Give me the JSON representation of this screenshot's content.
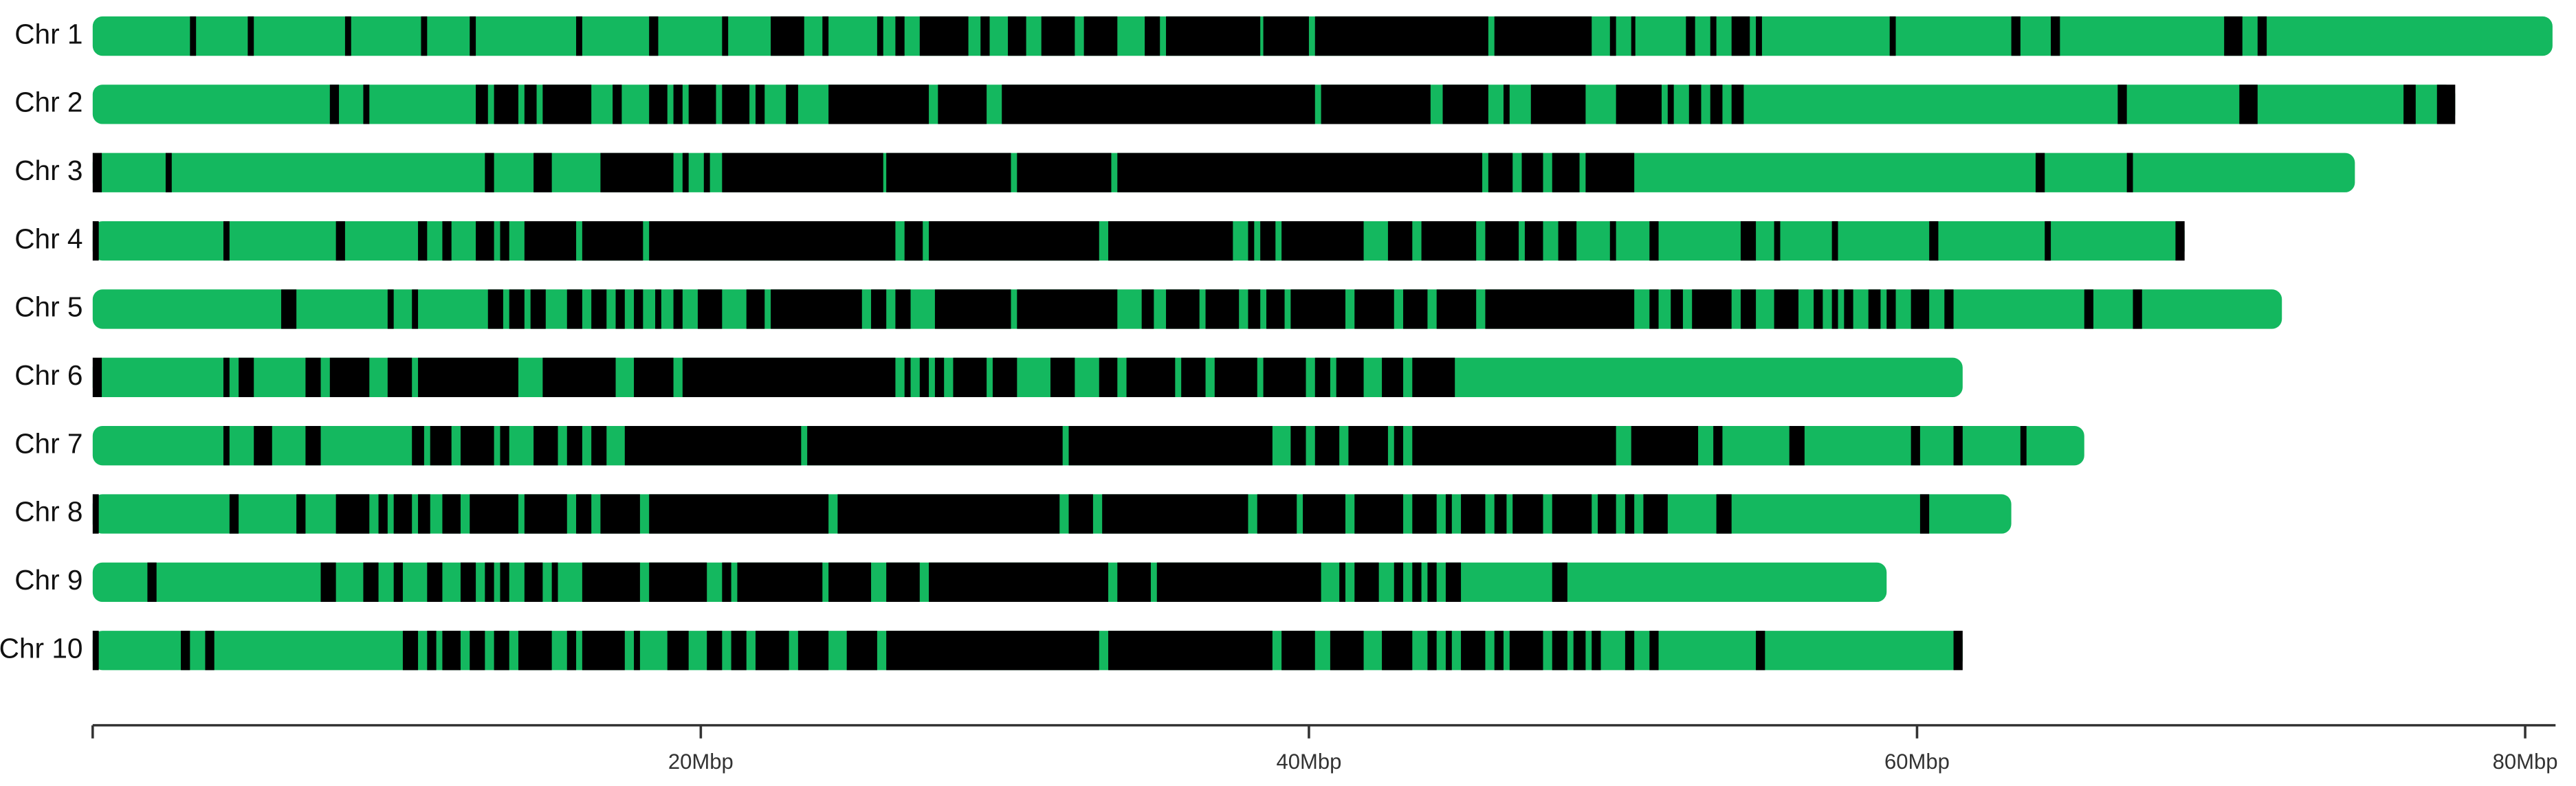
{
  "chart_data": {
    "type": "ideogram",
    "categories": [
      "Chr 1",
      "Chr 2",
      "Chr 3",
      "Chr 4",
      "Chr 5",
      "Chr 6",
      "Chr 7",
      "Chr 8",
      "Chr 9",
      "Chr 10"
    ],
    "lengths": [
      80.9,
      77.7,
      74.4,
      68.8,
      72.0,
      61.5,
      65.5,
      63.1,
      59.0,
      61.5
    ],
    "chromosome_color": "#14b85f",
    "segment_color": "#000000",
    "segments": [
      [
        [
          3.2,
          3.4
        ],
        [
          5.1,
          5.3
        ],
        [
          8.3,
          8.5
        ],
        [
          10.8,
          11.0
        ],
        [
          12.4,
          12.6
        ],
        [
          15.9,
          16.1
        ],
        [
          18.3,
          18.6
        ],
        [
          20.7,
          20.9
        ],
        [
          22.3,
          23.4
        ],
        [
          24.0,
          24.2
        ],
        [
          25.8,
          26.0
        ],
        [
          26.4,
          26.7
        ],
        [
          27.2,
          28.8
        ],
        [
          29.2,
          29.5
        ],
        [
          30.1,
          30.7
        ],
        [
          31.2,
          32.3
        ],
        [
          32.6,
          33.7
        ],
        [
          34.6,
          35.1
        ],
        [
          35.3,
          38.4
        ],
        [
          38.5,
          40.0
        ],
        [
          40.2,
          45.9
        ],
        [
          46.1,
          49.3
        ],
        [
          49.9,
          50.1
        ],
        [
          50.6,
          50.7
        ],
        [
          52.4,
          52.7
        ],
        [
          53.2,
          53.4
        ],
        [
          53.9,
          54.5
        ],
        [
          54.7,
          54.9
        ],
        [
          59.1,
          59.3
        ],
        [
          63.1,
          63.4
        ],
        [
          64.4,
          64.7
        ],
        [
          70.1,
          70.7
        ],
        [
          71.2,
          71.5
        ]
      ],
      [
        [
          7.8,
          8.1
        ],
        [
          8.9,
          9.1
        ],
        [
          12.6,
          13.0
        ],
        [
          13.2,
          14.0
        ],
        [
          14.2,
          14.6
        ],
        [
          14.8,
          16.4
        ],
        [
          17.1,
          17.4
        ],
        [
          18.3,
          18.9
        ],
        [
          19.1,
          19.4
        ],
        [
          19.6,
          20.5
        ],
        [
          20.7,
          21.6
        ],
        [
          21.8,
          22.1
        ],
        [
          22.8,
          23.2
        ],
        [
          24.2,
          27.5
        ],
        [
          27.8,
          29.4
        ],
        [
          29.9,
          40.2
        ],
        [
          40.4,
          44.0
        ],
        [
          44.4,
          45.9
        ],
        [
          46.4,
          46.6
        ],
        [
          47.3,
          49.1
        ],
        [
          50.1,
          51.6
        ],
        [
          51.8,
          52.0
        ],
        [
          52.5,
          52.9
        ],
        [
          53.2,
          53.6
        ],
        [
          53.9,
          54.3
        ],
        [
          66.6,
          66.9
        ],
        [
          70.6,
          71.2
        ],
        [
          76.0,
          76.4
        ],
        [
          77.1,
          77.7
        ]
      ],
      [
        [
          0,
          0.3
        ],
        [
          2.4,
          2.6
        ],
        [
          12.9,
          13.2
        ],
        [
          14.5,
          15.1
        ],
        [
          16.7,
          19.1
        ],
        [
          19.4,
          19.6
        ],
        [
          20.1,
          20.3
        ],
        [
          20.7,
          26.0
        ],
        [
          26.1,
          30.2
        ],
        [
          30.4,
          33.5
        ],
        [
          33.7,
          45.7
        ],
        [
          45.9,
          46.7
        ],
        [
          47.0,
          47.7
        ],
        [
          48.0,
          48.9
        ],
        [
          49.1,
          50.7
        ],
        [
          63.9,
          64.2
        ],
        [
          66.9,
          67.1
        ]
      ],
      [
        [
          0,
          0.2
        ],
        [
          4.3,
          4.5
        ],
        [
          8.0,
          8.3
        ],
        [
          10.7,
          11.0
        ],
        [
          11.5,
          11.8
        ],
        [
          12.6,
          13.2
        ],
        [
          13.4,
          13.7
        ],
        [
          14.2,
          15.9
        ],
        [
          16.1,
          18.1
        ],
        [
          18.3,
          26.4
        ],
        [
          26.7,
          27.3
        ],
        [
          27.5,
          33.1
        ],
        [
          33.4,
          37.5
        ],
        [
          38.0,
          38.2
        ],
        [
          38.4,
          38.9
        ],
        [
          39.1,
          41.8
        ],
        [
          42.6,
          43.4
        ],
        [
          43.7,
          45.5
        ],
        [
          45.8,
          46.9
        ],
        [
          47.1,
          47.7
        ],
        [
          48.2,
          48.8
        ],
        [
          49.9,
          50.1
        ],
        [
          51.2,
          51.5
        ],
        [
          54.2,
          54.7
        ],
        [
          55.3,
          55.5
        ],
        [
          57.2,
          57.4
        ],
        [
          60.4,
          60.7
        ],
        [
          64.2,
          64.4
        ],
        [
          68.5,
          68.8
        ]
      ],
      [
        [
          6.2,
          6.7
        ],
        [
          9.7,
          9.9
        ],
        [
          10.5,
          10.7
        ],
        [
          13.0,
          13.5
        ],
        [
          13.7,
          14.2
        ],
        [
          14.4,
          14.9
        ],
        [
          15.6,
          16.1
        ],
        [
          16.4,
          16.9
        ],
        [
          17.2,
          17.5
        ],
        [
          17.8,
          18.1
        ],
        [
          18.5,
          18.7
        ],
        [
          19.1,
          19.4
        ],
        [
          19.9,
          20.7
        ],
        [
          21.5,
          22.1
        ],
        [
          22.3,
          25.3
        ],
        [
          25.6,
          26.1
        ],
        [
          26.4,
          26.9
        ],
        [
          27.7,
          30.2
        ],
        [
          30.4,
          33.7
        ],
        [
          34.5,
          34.9
        ],
        [
          35.3,
          36.4
        ],
        [
          36.6,
          37.7
        ],
        [
          38.0,
          38.4
        ],
        [
          38.6,
          39.2
        ],
        [
          39.4,
          41.2
        ],
        [
          41.5,
          42.8
        ],
        [
          43.1,
          43.9
        ],
        [
          44.2,
          45.5
        ],
        [
          45.8,
          50.7
        ],
        [
          51.2,
          51.5
        ],
        [
          51.9,
          52.3
        ],
        [
          52.6,
          53.9
        ],
        [
          54.2,
          54.7
        ],
        [
          55.3,
          56.1
        ],
        [
          56.6,
          56.9
        ],
        [
          57.2,
          57.4
        ],
        [
          57.6,
          57.9
        ],
        [
          58.4,
          58.8
        ],
        [
          59.0,
          59.3
        ],
        [
          59.8,
          60.4
        ],
        [
          60.9,
          61.2
        ],
        [
          65.5,
          65.8
        ],
        [
          67.1,
          67.4
        ]
      ],
      [
        [
          0,
          0.3
        ],
        [
          4.3,
          4.5
        ],
        [
          4.8,
          5.3
        ],
        [
          7.0,
          7.5
        ],
        [
          7.8,
          9.1
        ],
        [
          9.7,
          10.5
        ],
        [
          10.7,
          14.0
        ],
        [
          14.8,
          17.2
        ],
        [
          17.8,
          19.1
        ],
        [
          19.4,
          26.4
        ],
        [
          26.7,
          26.9
        ],
        [
          27.2,
          27.5
        ],
        [
          27.7,
          28.0
        ],
        [
          28.3,
          29.4
        ],
        [
          29.6,
          30.4
        ],
        [
          31.5,
          32.3
        ],
        [
          33.1,
          33.7
        ],
        [
          34.0,
          35.6
        ],
        [
          35.8,
          36.6
        ],
        [
          36.9,
          38.3
        ],
        [
          38.5,
          39.9
        ],
        [
          40.2,
          40.7
        ],
        [
          40.9,
          41.8
        ],
        [
          42.4,
          43.1
        ],
        [
          43.4,
          44.8
        ]
      ],
      [
        [
          4.3,
          4.5
        ],
        [
          5.3,
          5.9
        ],
        [
          7.0,
          7.5
        ],
        [
          10.5,
          10.9
        ],
        [
          11.1,
          11.8
        ],
        [
          12.1,
          13.2
        ],
        [
          13.4,
          13.7
        ],
        [
          14.5,
          15.3
        ],
        [
          15.6,
          16.1
        ],
        [
          16.4,
          16.9
        ],
        [
          17.5,
          23.3
        ],
        [
          23.5,
          31.9
        ],
        [
          32.1,
          38.8
        ],
        [
          39.4,
          39.9
        ],
        [
          40.2,
          41.0
        ],
        [
          41.3,
          42.6
        ],
        [
          42.8,
          43.1
        ],
        [
          43.4,
          50.1
        ],
        [
          50.6,
          52.8
        ],
        [
          53.3,
          53.6
        ],
        [
          55.8,
          56.3
        ],
        [
          59.8,
          60.1
        ],
        [
          61.2,
          61.5
        ],
        [
          63.4,
          63.6
        ]
      ],
      [
        [
          0,
          0.2
        ],
        [
          4.5,
          4.8
        ],
        [
          6.7,
          7.0
        ],
        [
          8.0,
          9.1
        ],
        [
          9.4,
          9.7
        ],
        [
          9.9,
          10.5
        ],
        [
          10.7,
          11.1
        ],
        [
          11.5,
          12.1
        ],
        [
          12.4,
          14.0
        ],
        [
          14.2,
          15.6
        ],
        [
          15.9,
          16.4
        ],
        [
          16.7,
          18.0
        ],
        [
          18.3,
          24.2
        ],
        [
          24.5,
          31.8
        ],
        [
          32.1,
          32.9
        ],
        [
          33.2,
          38.0
        ],
        [
          38.3,
          39.6
        ],
        [
          39.8,
          41.2
        ],
        [
          41.5,
          43.1
        ],
        [
          43.4,
          44.2
        ],
        [
          44.5,
          44.7
        ],
        [
          45.0,
          45.8
        ],
        [
          46.1,
          46.5
        ],
        [
          46.7,
          47.7
        ],
        [
          48.0,
          49.3
        ],
        [
          49.5,
          50.1
        ],
        [
          50.4,
          50.7
        ],
        [
          51.0,
          51.8
        ],
        [
          53.4,
          53.9
        ],
        [
          60.1,
          60.4
        ]
      ],
      [
        [
          1.8,
          2.1
        ],
        [
          7.5,
          8.0
        ],
        [
          8.9,
          9.4
        ],
        [
          9.9,
          10.2
        ],
        [
          11.0,
          11.5
        ],
        [
          12.1,
          12.6
        ],
        [
          12.9,
          13.2
        ],
        [
          13.4,
          13.7
        ],
        [
          14.2,
          14.8
        ],
        [
          15.1,
          15.3
        ],
        [
          16.1,
          18.0
        ],
        [
          18.3,
          20.2
        ],
        [
          20.7,
          21.0
        ],
        [
          21.2,
          24.0
        ],
        [
          24.2,
          25.6
        ],
        [
          26.1,
          27.2
        ],
        [
          27.5,
          33.4
        ],
        [
          33.7,
          34.8
        ],
        [
          35.0,
          40.4
        ],
        [
          41.0,
          41.2
        ],
        [
          41.5,
          42.3
        ],
        [
          42.8,
          43.1
        ],
        [
          43.4,
          43.7
        ],
        [
          43.9,
          44.2
        ],
        [
          44.5,
          45.0
        ],
        [
          48.0,
          48.5
        ]
      ],
      [
        [
          0,
          0.2
        ],
        [
          2.9,
          3.2
        ],
        [
          3.7,
          4.0
        ],
        [
          10.2,
          10.7
        ],
        [
          11.0,
          11.3
        ],
        [
          11.5,
          12.1
        ],
        [
          12.4,
          12.9
        ],
        [
          13.2,
          13.7
        ],
        [
          14.0,
          15.1
        ],
        [
          15.6,
          15.9
        ],
        [
          16.1,
          17.5
        ],
        [
          17.8,
          18.0
        ],
        [
          18.9,
          19.6
        ],
        [
          20.2,
          20.7
        ],
        [
          21.0,
          21.5
        ],
        [
          21.8,
          22.9
        ],
        [
          23.2,
          24.2
        ],
        [
          24.8,
          25.8
        ],
        [
          26.1,
          33.1
        ],
        [
          33.4,
          38.8
        ],
        [
          39.1,
          40.2
        ],
        [
          40.7,
          41.8
        ],
        [
          42.4,
          43.4
        ],
        [
          43.9,
          44.2
        ],
        [
          44.5,
          44.7
        ],
        [
          45.0,
          45.8
        ],
        [
          46.1,
          46.4
        ],
        [
          46.6,
          47.7
        ],
        [
          48.0,
          48.5
        ],
        [
          48.7,
          49.1
        ],
        [
          49.3,
          49.6
        ],
        [
          50.4,
          50.7
        ],
        [
          51.2,
          51.5
        ],
        [
          54.7,
          55.0
        ],
        [
          61.2,
          61.5
        ]
      ]
    ],
    "xlim": [
      0,
      81
    ],
    "xticks": [
      {
        "value": 20,
        "label": "20Mbp"
      },
      {
        "value": 40,
        "label": "40Mbp"
      },
      {
        "value": 60,
        "label": "60Mbp"
      },
      {
        "value": 80,
        "label": "80Mbp"
      }
    ]
  }
}
